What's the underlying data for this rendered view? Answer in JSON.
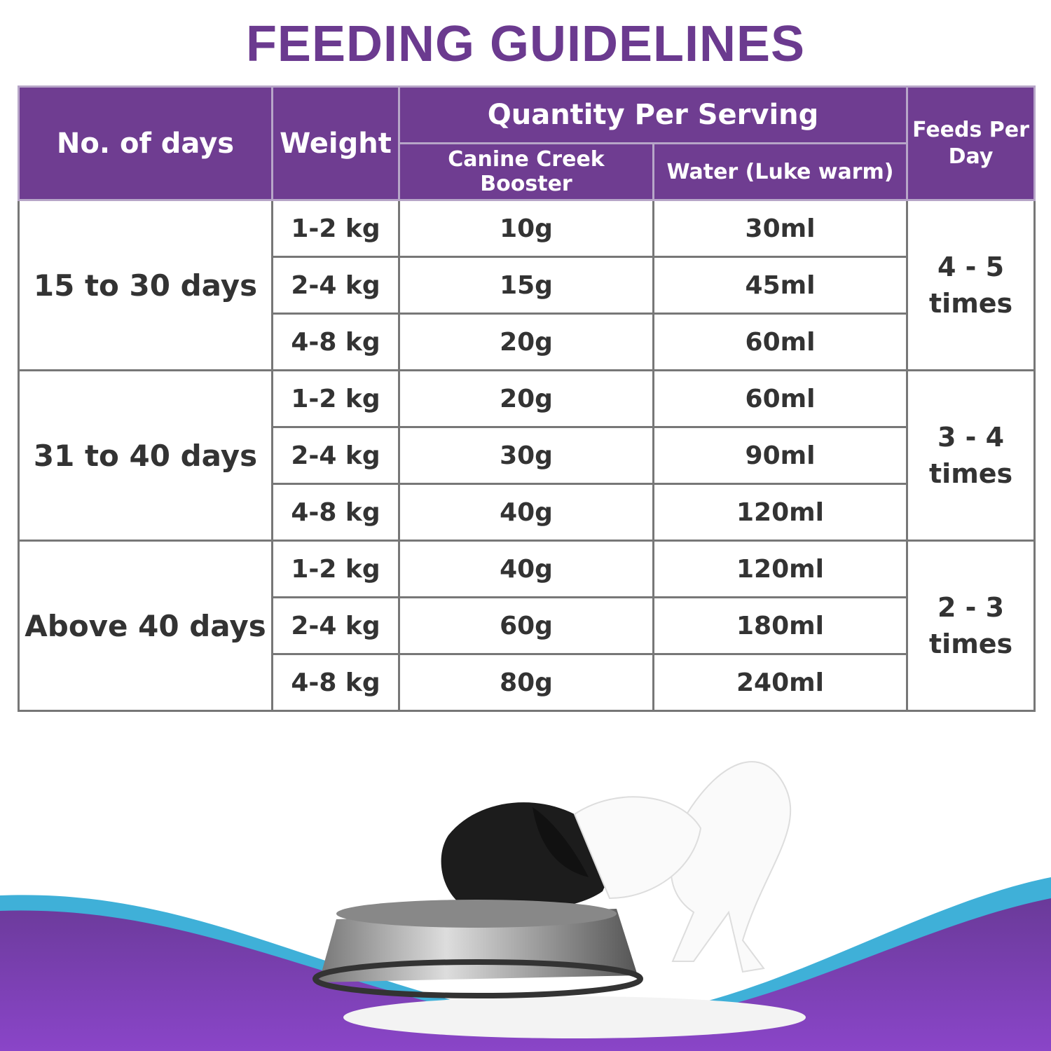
{
  "title": "FEEDING GUIDELINES",
  "table": {
    "header": {
      "days": "No. of days",
      "weight": "Weight",
      "quantity": "Quantity Per Serving",
      "booster": "Canine Creek Booster",
      "water": "Water (Luke warm)",
      "feeds": "Feeds Per Day"
    },
    "groups": [
      {
        "days": "15 to 30 days",
        "feeds": "4 - 5 times",
        "rows": [
          [
            "1-2 kg",
            "10g",
            "30ml"
          ],
          [
            "2-4 kg",
            "15g",
            "45ml"
          ],
          [
            "4-8 kg",
            "20g",
            "60ml"
          ]
        ]
      },
      {
        "days": "31 to 40 days",
        "feeds": "3 - 4 times",
        "rows": [
          [
            "1-2 kg",
            "20g",
            "60ml"
          ],
          [
            "2-4 kg",
            "30g",
            "90ml"
          ],
          [
            "4-8 kg",
            "40g",
            "120ml"
          ]
        ]
      },
      {
        "days": "Above 40 days",
        "feeds": "2 - 3 times",
        "rows": [
          [
            "1-2 kg",
            "40g",
            "120ml"
          ],
          [
            "2-4 kg",
            "60g",
            "180ml"
          ],
          [
            "4-8 kg",
            "80g",
            "240ml"
          ]
        ]
      }
    ]
  }
}
